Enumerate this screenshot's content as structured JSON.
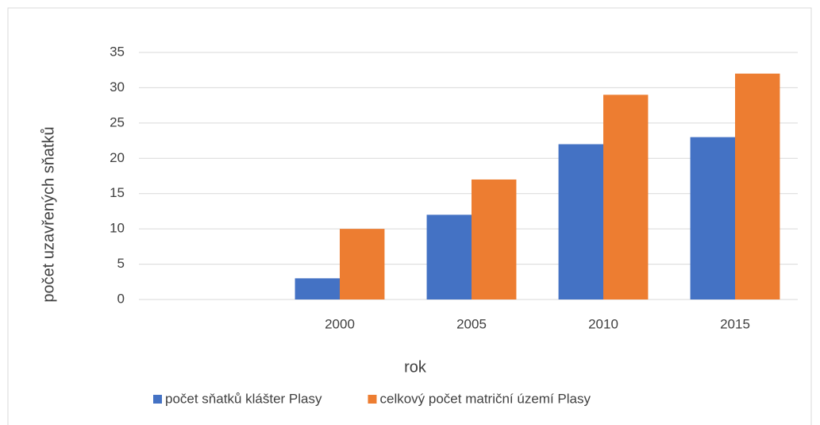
{
  "chart_data": {
    "type": "bar",
    "categories": [
      null,
      "2000",
      "2005",
      "2010",
      "2015"
    ],
    "series": [
      {
        "name": "počet sňatků klášter Plasy",
        "color": "#4472c4",
        "values": [
          null,
          3,
          12,
          22,
          23
        ]
      },
      {
        "name": "celkový počet matriční území Plasy",
        "color": "#ed7d31",
        "values": [
          null,
          10,
          17,
          29,
          32
        ]
      }
    ],
    "xlabel": "rok",
    "ylabel": "počet uzavřených sňatků",
    "ylim": [
      0,
      35
    ],
    "yticks": [
      0,
      5,
      10,
      15,
      20,
      25,
      30,
      35
    ],
    "grid": true,
    "legend": "bottom"
  }
}
